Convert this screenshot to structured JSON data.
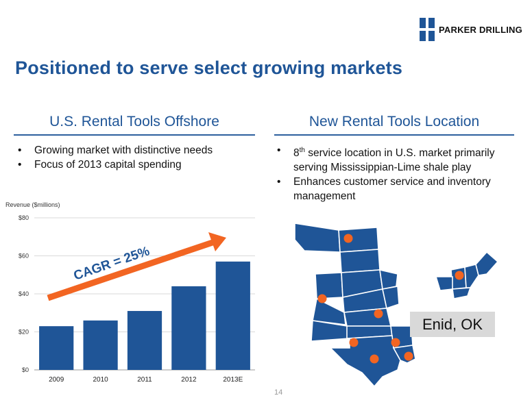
{
  "logo": {
    "text": "PARKER DRILLING",
    "brand_color": "#1f5597"
  },
  "title": "Positioned to serve select growing markets",
  "left": {
    "heading": "U.S. Rental Tools Offshore",
    "bullets": [
      "Growing market with distinctive needs",
      "Focus of 2013 capital spending"
    ]
  },
  "right": {
    "heading": "New Rental Tools Location",
    "bullet1": {
      "sup": "th",
      "num": "8",
      "rest": " service location in U.S. market primarily serving Mississippian-Lime shale play"
    },
    "bullet2": "Enhances customer service and inventory management"
  },
  "callout": "Enid, OK",
  "page_number": "14",
  "colors": {
    "bar": "#1f5597",
    "arrow": "#f26522",
    "map": "#1f5597",
    "dot": "#f26522",
    "grid": "#d9d9d9"
  },
  "chart_data": {
    "type": "bar",
    "ylabel": "Revenue ($millions)",
    "categories": [
      "2009",
      "2010",
      "2011",
      "2012",
      "2013E"
    ],
    "values": [
      23,
      26,
      31,
      44,
      57
    ],
    "ylim": [
      0,
      80
    ],
    "yticks": [
      "$0",
      "$20",
      "$40",
      "$60",
      "$80"
    ],
    "ytick_values": [
      0,
      20,
      40,
      60,
      80
    ],
    "grid": true,
    "annotation": "CAGR = 25%"
  }
}
